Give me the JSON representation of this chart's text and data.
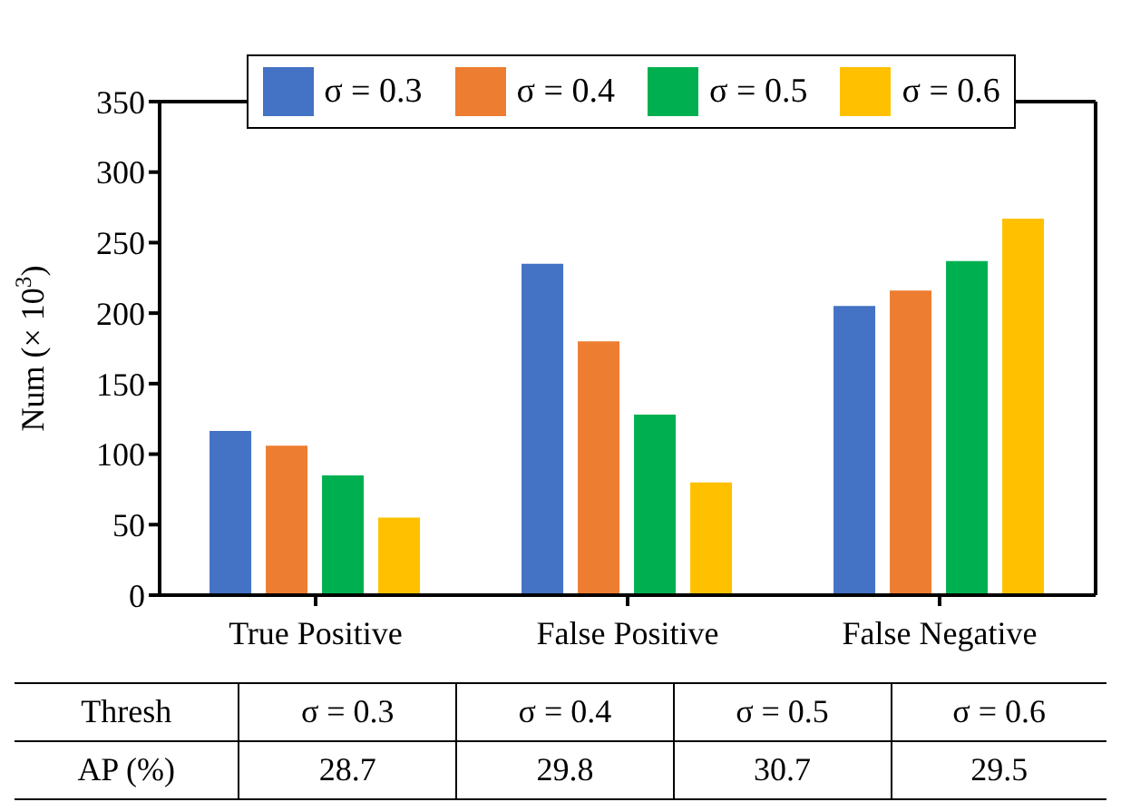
{
  "chart_data": {
    "type": "bar",
    "ylabel": "Num (× 10$^{3}$)",
    "categories": [
      "True Positive",
      "False Positive",
      "False Negative"
    ],
    "series": [
      {
        "name": "σ = 0.3",
        "color": "#4472c4",
        "values": [
          116.5,
          235,
          205
        ]
      },
      {
        "name": "σ = 0.4",
        "color": "#ed7d31",
        "values": [
          106,
          180,
          216
        ]
      },
      {
        "name": "σ = 0.5",
        "color": "#00b050",
        "values": [
          85,
          128,
          237
        ]
      },
      {
        "name": "σ = 0.6",
        "color": "#ffc000",
        "values": [
          55,
          80,
          267
        ]
      }
    ],
    "ylim": [
      0,
      350
    ],
    "yticks": [
      0,
      50,
      100,
      150,
      200,
      250,
      300,
      350
    ],
    "grid": false,
    "legend": "top",
    "annotations": [
      "Thresh",
      "σ = 0.3",
      "σ = 0.4",
      "σ = 0.5",
      "σ = 0.6",
      "AP (%)",
      "28.7",
      "29.8",
      "30.7",
      "29.5"
    ]
  }
}
